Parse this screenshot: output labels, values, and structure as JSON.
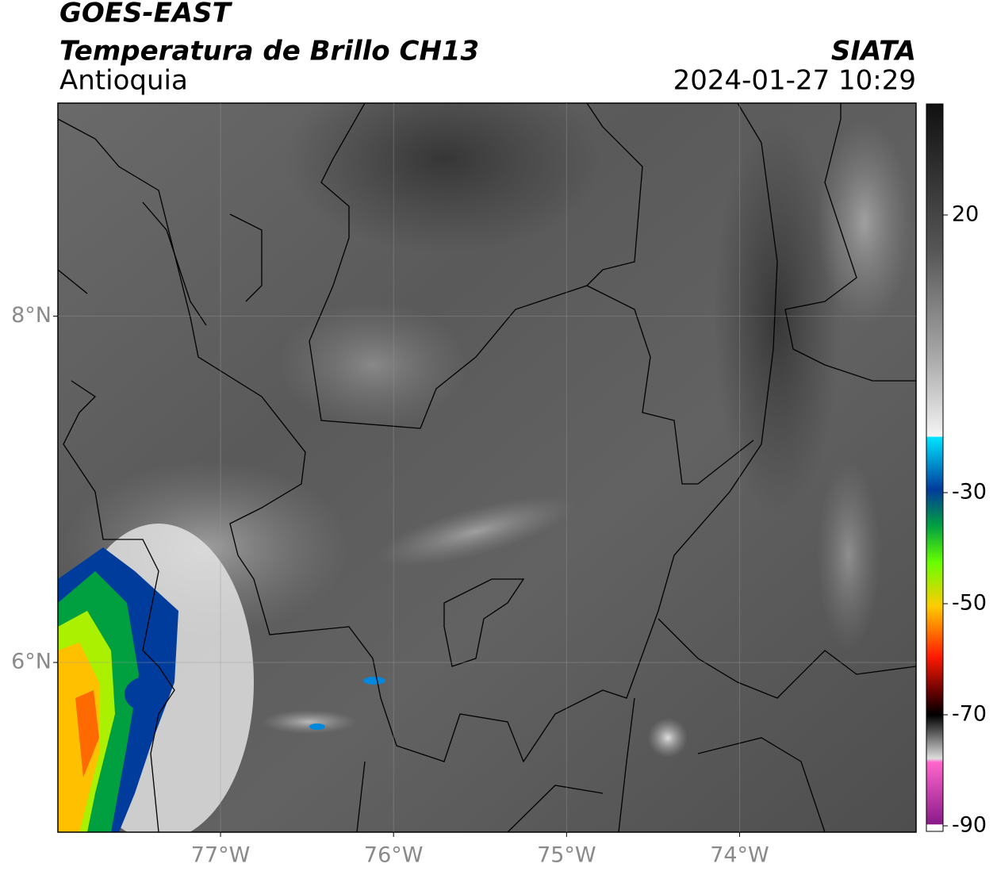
{
  "header": {
    "satellite": "GOES-EAST",
    "product": "Temperatura de Brillo CH13",
    "region": "Antioquia",
    "source": "SIATA",
    "datetime": "2024-01-27 10:29"
  },
  "map": {
    "xlim": [
      -77.94,
      -72.98
    ],
    "ylim": [
      5.02,
      9.23
    ],
    "xticks": [
      {
        "value": -77,
        "label": "77°W"
      },
      {
        "value": -76,
        "label": "76°W"
      },
      {
        "value": -75,
        "label": "75°W"
      },
      {
        "value": -74,
        "label": "74°W"
      }
    ],
    "yticks": [
      {
        "value": 8,
        "label": "8°N"
      },
      {
        "value": 6,
        "label": "6°N"
      }
    ],
    "grid": true
  },
  "colorbar": {
    "lim": [
      -91,
      40
    ],
    "ticks": [
      20,
      -30,
      -50,
      -70,
      -90
    ]
  }
}
